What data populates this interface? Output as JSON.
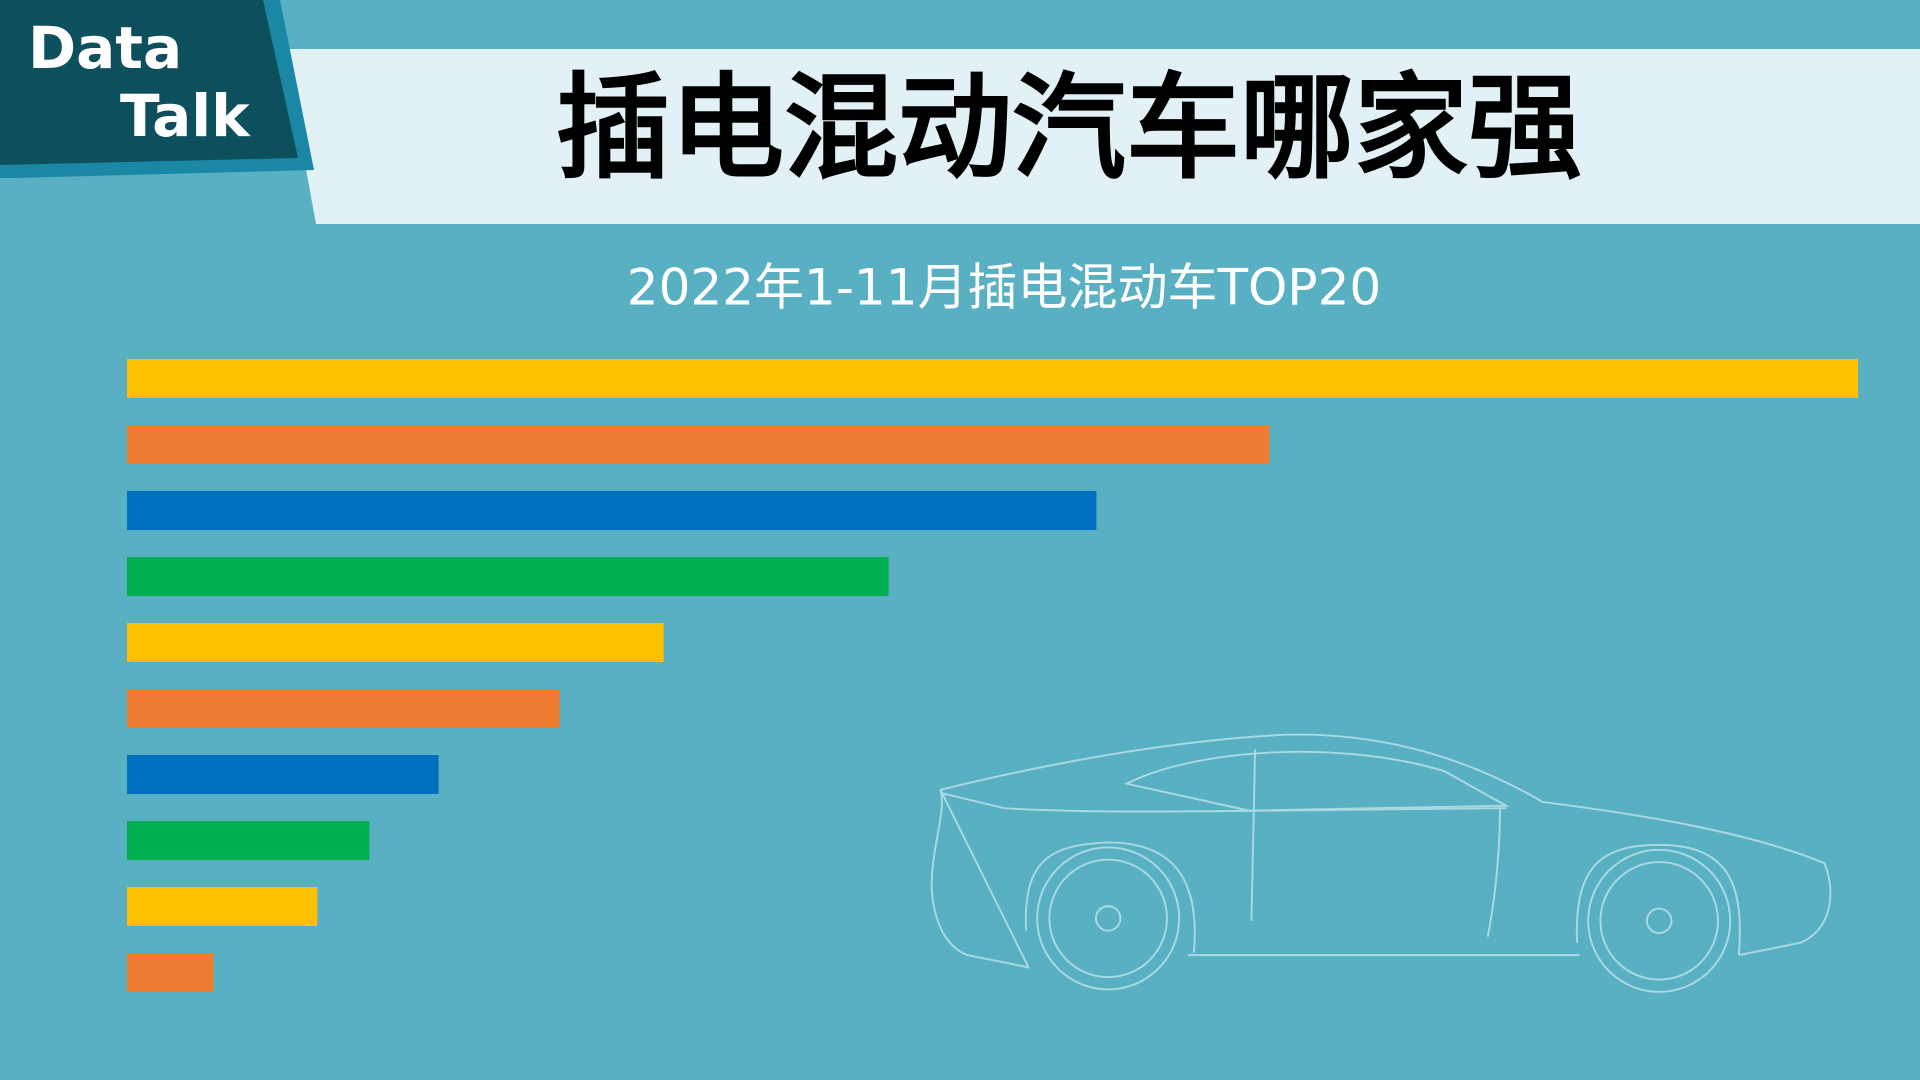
{
  "header": {
    "logo_line1": "Data",
    "logo_line2": "Talk",
    "title": "插电混动汽车哪家强"
  },
  "chart_data": {
    "type": "bar",
    "orientation": "horizontal",
    "title": "2022年1-11月插电混动车TOP20",
    "categories": [
      null,
      null,
      null,
      null,
      null,
      null,
      null,
      null,
      null,
      null
    ],
    "values": [
      100,
      66,
      56,
      44,
      31,
      25,
      18,
      14,
      11,
      5
    ],
    "colors": [
      "#ffc000",
      "#ed7d31",
      "#0070c0",
      "#00b050",
      "#ffc000",
      "#ed7d31",
      "#0070c0",
      "#00b050",
      "#ffc000",
      "#ed7d31"
    ]
  }
}
